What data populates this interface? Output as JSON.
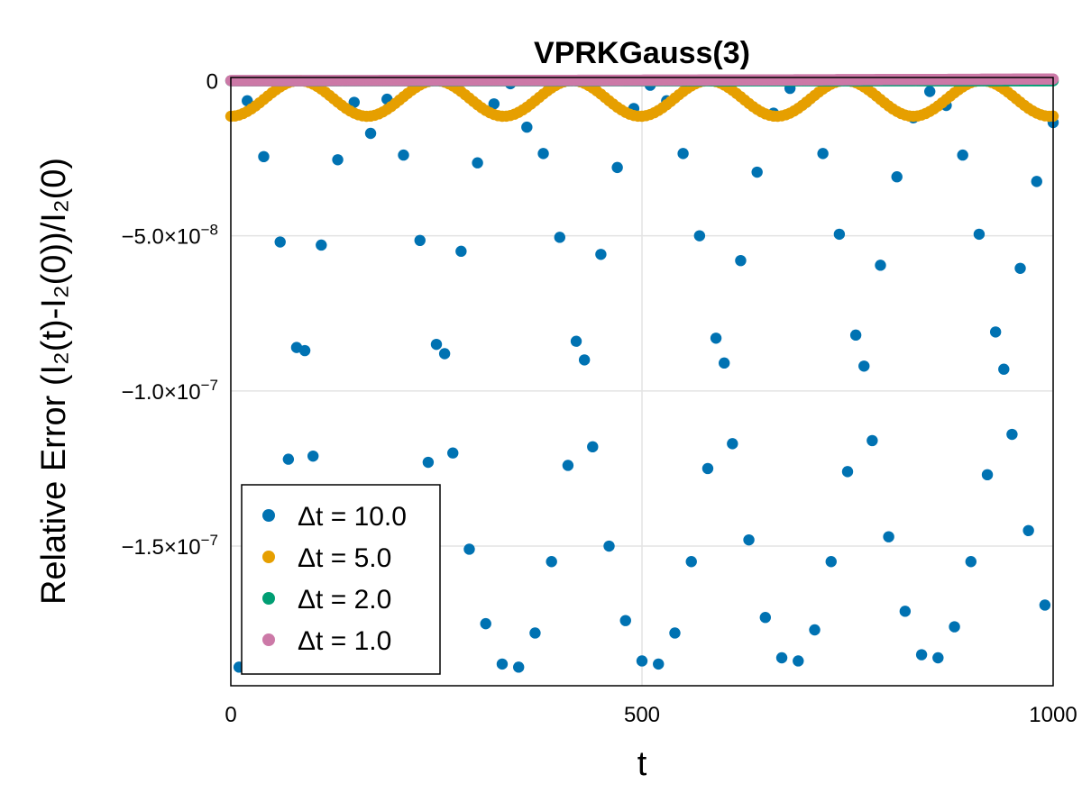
{
  "chart_data": {
    "type": "scatter",
    "title": "VPRKGauss(3)",
    "xlabel": "t",
    "ylabel": "Relative Error (I₂(t)-I₂(0))/I₂(0)",
    "xlim": [
      0,
      1000
    ],
    "ylim": [
      -1.95e-07,
      1e-09
    ],
    "grid": true,
    "legend_position": "bottom-left",
    "x_ticks": [
      {
        "value": 0,
        "label": "0"
      },
      {
        "value": 500,
        "label": "500"
      },
      {
        "value": 1000,
        "label": "1000"
      }
    ],
    "y_ticks": [
      {
        "value": 0,
        "label": "0"
      },
      {
        "value": -5e-08,
        "label": "−5.0×10",
        "exp": "−8"
      },
      {
        "value": -1e-07,
        "label": "−1.0×10",
        "exp": "−7"
      },
      {
        "value": -1.5e-07,
        "label": "−1.5×10",
        "exp": "−7"
      }
    ],
    "series": [
      {
        "name": "Δt = 10.0",
        "color": "#0072b2",
        "x": [
          10,
          20,
          40,
          60,
          70,
          80,
          90,
          100,
          110,
          130,
          150,
          170,
          190,
          210,
          230,
          240,
          250,
          260,
          270,
          280,
          290,
          300,
          310,
          320,
          330,
          340,
          350,
          360,
          370,
          380,
          390,
          400,
          410,
          420,
          430,
          440,
          450,
          460,
          470,
          480,
          490,
          500,
          510,
          520,
          530,
          540,
          550,
          560,
          570,
          580,
          590,
          600,
          610,
          620,
          630,
          640,
          650,
          660,
          670,
          680,
          690,
          700,
          710,
          720,
          730,
          740,
          750,
          760,
          770,
          780,
          790,
          800,
          810,
          820,
          830,
          840,
          850,
          860,
          870,
          880,
          890,
          900,
          910,
          920,
          930,
          940,
          950,
          960,
          970,
          980,
          990,
          1000
        ],
        "y": [
          -1.89e-07,
          -6.5e-09,
          -2.45e-08,
          -5.2e-08,
          -1.22e-07,
          -8.6e-08,
          -8.7e-08,
          -1.21e-07,
          -5.3e-08,
          -2.55e-08,
          -7e-09,
          -1.7e-08,
          -6e-09,
          -2.4e-08,
          -5.15e-08,
          -1.23e-07,
          -8.5e-08,
          -8.8e-08,
          -1.2e-07,
          -5.5e-08,
          -1.51e-07,
          -2.65e-08,
          -1.75e-07,
          -7.5e-09,
          -1.88e-07,
          -1e-09,
          -1.89e-07,
          -1.5e-08,
          -1.78e-07,
          -2.35e-08,
          -1.55e-07,
          -5.05e-08,
          -1.24e-07,
          -8.4e-08,
          -9e-08,
          -1.18e-07,
          -5.6e-08,
          -1.5e-07,
          -2.8e-08,
          -1.74e-07,
          -9e-09,
          -1.87e-07,
          -1.5e-09,
          -1.88e-07,
          -6.5e-09,
          -1.78e-07,
          -2.35e-08,
          -1.55e-07,
          -5e-08,
          -1.25e-07,
          -8.3e-08,
          -9.1e-08,
          -1.17e-07,
          -5.8e-08,
          -1.48e-07,
          -2.95e-08,
          -1.73e-07,
          -1.05e-08,
          -1.86e-07,
          -2.5e-09,
          -1.87e-07,
          -7e-09,
          -1.77e-07,
          -2.35e-08,
          -1.55e-07,
          -4.95e-08,
          -1.26e-07,
          -8.2e-08,
          -9.2e-08,
          -1.16e-07,
          -5.95e-08,
          -1.47e-07,
          -3.1e-08,
          -1.71e-07,
          -1.2e-08,
          -1.85e-07,
          -3.5e-09,
          -1.86e-07,
          -8e-09,
          -1.76e-07,
          -2.4e-08,
          -1.55e-07,
          -4.95e-08,
          -1.27e-07,
          -8.1e-08,
          -9.3e-08,
          -1.14e-07,
          -6.05e-08,
          -1.45e-07,
          -3.25e-08,
          -1.69e-07,
          -1.35e-08
        ]
      },
      {
        "name": "Δt = 5.0",
        "color": "#e69f00",
        "x": [
          0,
          5,
          10,
          15,
          20,
          25,
          30,
          35,
          40,
          45,
          50,
          55,
          60,
          65,
          70,
          75,
          80,
          85,
          90,
          95,
          100,
          105,
          110,
          115,
          120,
          125,
          130,
          135,
          140,
          145,
          150,
          155,
          160,
          165,
          170,
          175,
          180,
          185,
          190,
          195,
          200,
          205,
          210,
          215,
          220,
          225,
          230,
          235,
          240,
          245,
          250,
          255,
          260,
          265,
          270,
          275,
          280,
          285,
          290,
          295,
          300,
          305,
          310,
          315,
          320,
          325,
          330,
          335,
          340,
          345,
          350,
          355,
          360,
          365,
          370,
          375,
          380,
          385,
          390,
          395,
          400,
          405,
          410,
          415,
          420,
          425,
          430,
          435,
          440,
          445,
          450,
          455,
          460,
          465,
          470,
          475,
          480,
          485,
          490,
          495,
          500,
          505,
          510,
          515,
          520,
          525,
          530,
          535,
          540,
          545,
          550,
          555,
          560,
          565,
          570,
          575,
          580,
          585,
          590,
          595,
          600,
          605,
          610,
          615,
          620,
          625,
          630,
          635,
          640,
          645,
          650,
          655,
          660,
          665,
          670,
          675,
          680,
          685,
          690,
          695,
          700,
          705,
          710,
          715,
          720,
          725,
          730,
          735,
          740,
          745,
          750,
          755,
          760,
          765,
          770,
          775,
          780,
          785,
          790,
          795,
          800,
          805,
          810,
          815,
          820,
          825,
          830,
          835,
          840,
          845,
          850,
          855,
          860,
          865,
          870,
          875,
          880,
          885,
          890,
          895,
          900,
          905,
          910,
          915,
          920,
          925,
          930,
          935,
          940,
          945,
          950,
          955,
          960,
          965,
          970,
          975,
          980,
          985,
          990,
          995,
          1000
        ],
        "period": 166,
        "amplitude": 1.15e-08,
        "phase_shift": 83,
        "y_formula": "-amplitude * sin^2(pi * (x + phase_shift) / period)"
      },
      {
        "name": "Δt = 2.0",
        "color": "#009e73",
        "x_start": 0,
        "x_end": 1000,
        "x_step": 2,
        "y_constant": -5e-11
      },
      {
        "name": "Δt = 1.0",
        "color": "#cc79a7",
        "x_start": 0,
        "x_end": 1000,
        "x_step": 1,
        "y_drift_end": 5e-10
      }
    ]
  }
}
